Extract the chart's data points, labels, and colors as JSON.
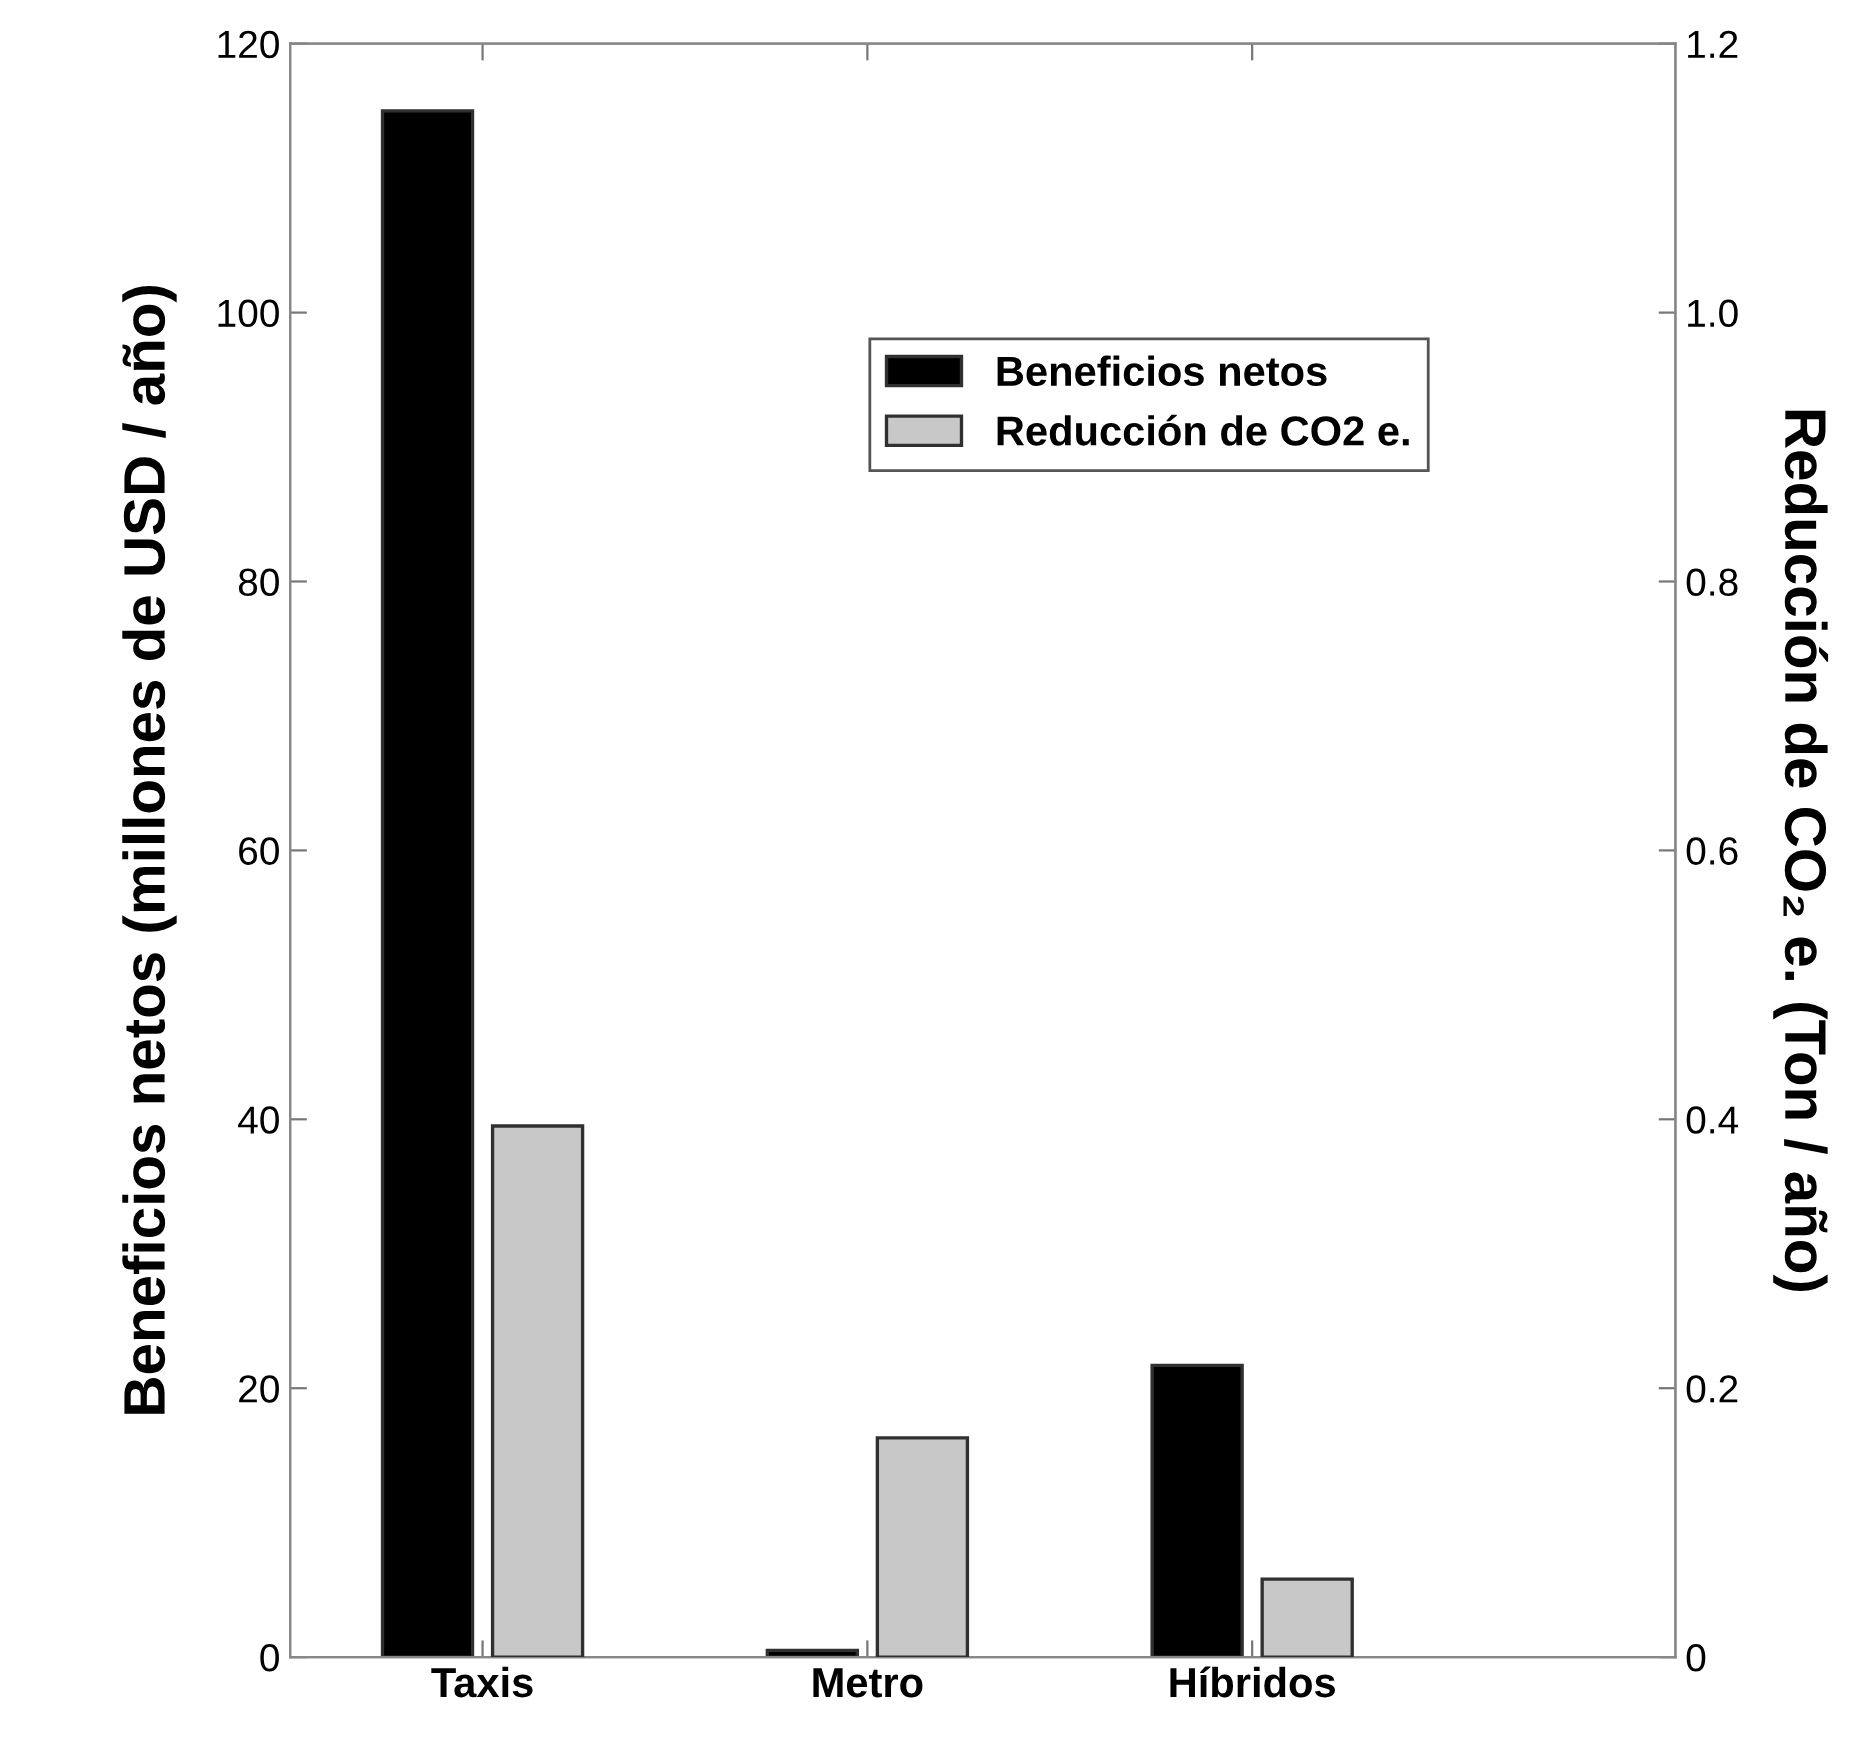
{
  "chart_data": {
    "type": "bar",
    "categories": [
      "Taxis",
      "Metro",
      "Híbridos"
    ],
    "series": [
      {
        "name": "Beneficios netos",
        "color": "#000000",
        "values": [
          115,
          0.5,
          21.7
        ]
      },
      {
        "name": "Reducción de CO2 e.",
        "color": "#c8c8c8",
        "values": [
          0.395,
          0.163,
          0.058
        ],
        "axis": "y2"
      }
    ],
    "ylabel": "Beneficios netos (millones de USD / año)",
    "y2label": "Reducción de CO₂ e. (Ton / año)",
    "ylim": [
      0,
      120
    ],
    "yticks": [
      0,
      20,
      40,
      60,
      80,
      100,
      120
    ],
    "y2lim": [
      0,
      1.2
    ],
    "y2ticks": [
      {
        "value": 0,
        "label": "0"
      },
      {
        "value": 0.2,
        "label": "0.2"
      },
      {
        "value": 0.4,
        "label": "0.4"
      },
      {
        "value": 0.6,
        "label": "0.6"
      },
      {
        "value": 0.8,
        "label": "0.8"
      },
      {
        "value": 1.0,
        "label": "1.0"
      },
      {
        "value": 1.2,
        "label": "1.2"
      }
    ],
    "grid": false,
    "legend": "top"
  }
}
